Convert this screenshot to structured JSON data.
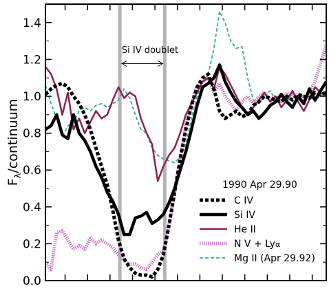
{
  "chart_data": {
    "type": "line",
    "title": "",
    "xlabel": "",
    "ylabel_main": "F",
    "ylabel_sub": "λ",
    "ylabel_rest": "/continuum",
    "xlim": [
      0,
      100
    ],
    "ylim": [
      0.0,
      1.5
    ],
    "yticks": [
      0.0,
      0.2,
      0.4,
      0.6,
      0.8,
      1.0,
      1.2,
      1.4
    ],
    "ytick_labels": [
      "0.0",
      "0.2",
      "0.4",
      "0.6",
      "0.8",
      "1.0",
      "1.2",
      "1.4"
    ],
    "xticks": [
      7,
      15,
      23,
      31,
      39,
      47,
      55,
      63,
      71,
      79,
      87,
      95
    ],
    "vertical_bands": [
      26.5,
      42.5
    ],
    "annotation": {
      "text": "Si IV doublet",
      "x_from": 26.5,
      "x_to": 42.5,
      "y": 1.2
    },
    "legend": {
      "title": "1990 Apr 29.90",
      "placement": "lower-right"
    },
    "series": [
      {
        "name": "C IV",
        "color": "#000000",
        "style": "dotted-thick",
        "x": [
          0,
          2,
          4,
          6,
          8,
          10,
          12,
          14,
          16,
          18,
          20,
          22,
          24,
          26,
          28,
          30,
          32,
          34,
          36,
          38,
          40,
          42,
          44,
          46,
          48,
          50,
          52,
          54,
          56,
          58,
          60,
          62,
          64,
          66,
          68,
          70,
          72,
          74,
          76,
          78,
          80,
          82,
          84,
          86,
          88,
          90,
          92,
          94,
          96,
          98,
          100
        ],
        "y": [
          1.01,
          1.04,
          1.06,
          1.07,
          1.05,
          1.0,
          0.96,
          0.9,
          0.82,
          0.72,
          0.62,
          0.52,
          0.38,
          0.22,
          0.12,
          0.07,
          0.04,
          0.03,
          0.03,
          0.02,
          0.06,
          0.14,
          0.3,
          0.48,
          0.66,
          0.82,
          0.95,
          1.05,
          1.1,
          1.12,
          1.04,
          0.92,
          0.88,
          0.9,
          0.92,
          0.89,
          0.9,
          0.95,
          0.97,
          1.0,
          0.99,
          0.98,
          0.97,
          1.0,
          0.98,
          1.01,
          1.0,
          0.99,
          1.02,
          1.01,
          1.02
        ]
      },
      {
        "name": "Si IV",
        "color": "#000000",
        "style": "solid-thick",
        "x": [
          0,
          2,
          4,
          6,
          8,
          10,
          12,
          14,
          16,
          18,
          20,
          22,
          24,
          26,
          28,
          30,
          32,
          34,
          36,
          38,
          40,
          42,
          44,
          46,
          48,
          50,
          52,
          54,
          56,
          58,
          60,
          62,
          64,
          66,
          68,
          70,
          72,
          74,
          76,
          78,
          80,
          82,
          84,
          86,
          88,
          90,
          92,
          94,
          96,
          98,
          100
        ],
        "y": [
          0.82,
          0.84,
          0.9,
          0.79,
          0.77,
          0.9,
          0.8,
          0.76,
          0.7,
          0.62,
          0.56,
          0.48,
          0.43,
          0.36,
          0.25,
          0.25,
          0.34,
          0.35,
          0.37,
          0.31,
          0.33,
          0.36,
          0.42,
          0.5,
          0.6,
          0.7,
          0.82,
          0.95,
          1.05,
          1.07,
          1.1,
          1.17,
          1.08,
          1.02,
          0.97,
          0.94,
          0.9,
          0.92,
          0.88,
          0.91,
          0.95,
          0.97,
          1.01,
          0.97,
          0.94,
          1.0,
          0.96,
          1.04,
          0.98,
          1.03,
          1.08
        ]
      },
      {
        "name": "He II",
        "color": "#8b2252",
        "style": "solid",
        "x": [
          0,
          2,
          4,
          6,
          8,
          10,
          12,
          14,
          16,
          18,
          20,
          22,
          24,
          26,
          28,
          30,
          32,
          34,
          36,
          38,
          40,
          42,
          44,
          46,
          48,
          50,
          52,
          54,
          56,
          58,
          60,
          62,
          64,
          66,
          68,
          70,
          72,
          74,
          76,
          78,
          80,
          82,
          84,
          86,
          88,
          90,
          92,
          94,
          96,
          98,
          100
        ],
        "y": [
          1.16,
          1.12,
          1.04,
          0.9,
          1.02,
          0.82,
          0.88,
          0.8,
          0.86,
          0.92,
          0.88,
          0.9,
          0.98,
          1.05,
          0.99,
          1.02,
          1.0,
          0.88,
          0.8,
          0.74,
          0.54,
          0.62,
          0.68,
          0.72,
          0.8,
          0.9,
          0.96,
          1.02,
          1.08,
          1.1,
          1.04,
          1.16,
          1.12,
          1.06,
          1.0,
          0.94,
          0.9,
          0.94,
          0.98,
          1.02,
          0.97,
          1.0,
          0.94,
          0.98,
          1.03,
          0.97,
          0.92,
          0.98,
          1.05,
          1.02,
          1.0
        ]
      },
      {
        "name": "N V + Ly",
        "name_suffix": "α",
        "color": "#d080d0",
        "style": "hatched",
        "x": [
          0,
          2,
          4,
          6,
          8,
          10,
          12,
          14,
          16,
          18,
          20,
          22,
          24,
          26,
          28,
          30,
          32,
          34,
          36,
          38,
          40,
          42,
          44,
          46,
          48,
          50,
          52,
          54,
          56,
          58,
          60,
          62,
          64,
          66,
          68,
          70,
          72,
          74,
          76,
          78,
          80,
          82,
          84,
          86,
          88,
          90,
          92,
          94,
          96,
          98,
          100
        ],
        "y": [
          0.1,
          0.06,
          0.26,
          0.27,
          0.22,
          0.17,
          0.19,
          0.17,
          0.23,
          0.2,
          0.22,
          0.2,
          0.18,
          0.14,
          0.11,
          0.09,
          0.09,
          0.07,
          0.06,
          0.1,
          0.14,
          0.16,
          0.3,
          0.48,
          0.66,
          0.84,
          0.96,
          1.05,
          1.08,
          1.1,
          1.02,
          1.07,
          1.0,
          0.96,
          0.92,
          0.97,
          1.0,
          0.96,
          1.0,
          1.02,
          0.98,
          1.0,
          0.97,
          1.02,
          1.0,
          1.01,
          0.99,
          1.02,
          1.08,
          1.18,
          1.28
        ]
      },
      {
        "name": "Mg II (Apr 29.92)",
        "color": "#3aa89a",
        "style": "dashed",
        "x": [
          0,
          2,
          4,
          6,
          8,
          10,
          12,
          14,
          16,
          18,
          20,
          22,
          24,
          26,
          28,
          30,
          32,
          34,
          36,
          38,
          40,
          42,
          44,
          46,
          48,
          50,
          52,
          54,
          56,
          58,
          60,
          62,
          64,
          66,
          68,
          70,
          72,
          74,
          76,
          78,
          80,
          82,
          84,
          86,
          88,
          90,
          92,
          94,
          96,
          98,
          100
        ],
        "y": [
          1.06,
          0.96,
          0.88,
          0.78,
          0.84,
          0.86,
          0.92,
          0.94,
          0.92,
          0.95,
          0.96,
          0.94,
          0.96,
          0.98,
          1.04,
          0.99,
          0.9,
          0.82,
          0.8,
          0.72,
          0.68,
          0.66,
          0.65,
          0.64,
          0.67,
          0.74,
          0.88,
          1.0,
          1.08,
          1.12,
          1.26,
          1.46,
          1.4,
          1.3,
          1.26,
          1.27,
          1.1,
          0.98,
          0.96,
          1.0,
          1.03,
          0.98,
          1.0,
          0.96,
          1.02,
          0.98,
          1.01,
          1.0,
          0.97,
          1.01,
          1.0
        ]
      }
    ]
  }
}
